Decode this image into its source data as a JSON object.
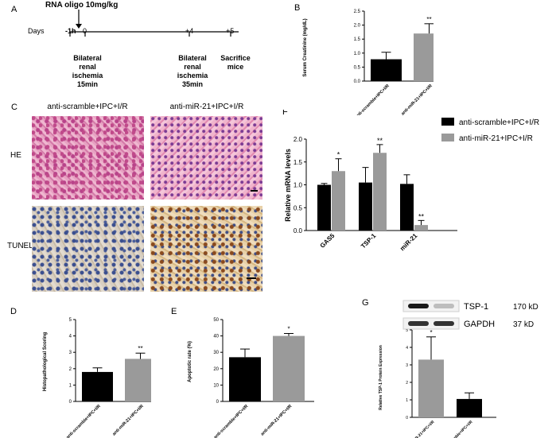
{
  "panel_a": {
    "letter": "A",
    "treatment": "RNA oligo 10mg/kg",
    "days_label": "Days",
    "ticks": [
      "-1h",
      "0",
      "+4",
      "+5"
    ],
    "events": [
      "Bilateral\nrenal\nischemia\n15min",
      "Bilateral\nrenal\nischemia\n35min",
      "Sacrifice\nmice"
    ]
  },
  "panel_c": {
    "letter": "C",
    "col1": "anti-scramble+IPC+I/R",
    "col2": "anti-miR-21+IPC+I/R",
    "row1": "HE",
    "row2": "TUNEL"
  },
  "colors": {
    "black": "#000000",
    "grey": "#9a9a9a"
  },
  "chart_data": [
    {
      "id": "B",
      "type": "bar",
      "letter": "B",
      "ylabel": "Serum Creatinine (mg/dL)",
      "ylim": [
        0,
        2.5
      ],
      "yticks": [
        "0.0",
        "0.5",
        "1.0",
        "1.5",
        "2.0",
        "2.5"
      ],
      "ytick_values": [
        0,
        0.5,
        1,
        1.5,
        2,
        2.5
      ],
      "categories": [
        "anti-scramble+IPC+I/R",
        "anti-miR-21+IPC+I/R"
      ],
      "values": [
        0.78,
        1.7
      ],
      "errors": [
        0.25,
        0.35
      ],
      "colors": [
        "#000000",
        "#9a9a9a"
      ],
      "sig": [
        "",
        "**"
      ]
    },
    {
      "id": "D",
      "type": "bar",
      "letter": "D",
      "ylabel": "Histopathological Scoring",
      "ylim": [
        0,
        5
      ],
      "yticks": [
        "0",
        "1",
        "2",
        "3",
        "4",
        "5"
      ],
      "ytick_values": [
        0,
        1,
        2,
        3,
        4,
        5
      ],
      "categories": [
        "anti-scramble+IPC+I/R",
        "anti-miR-21+IPC+I/R"
      ],
      "values": [
        1.8,
        2.6
      ],
      "errors": [
        0.25,
        0.35
      ],
      "colors": [
        "#000000",
        "#9a9a9a"
      ],
      "sig": [
        "",
        "**"
      ]
    },
    {
      "id": "E",
      "type": "bar",
      "letter": "E",
      "ylabel": "Apoptotic rate (%)",
      "ylim": [
        0,
        50
      ],
      "yticks": [
        "0",
        "10",
        "20",
        "30",
        "40",
        "50"
      ],
      "ytick_values": [
        0,
        10,
        20,
        30,
        40,
        50
      ],
      "categories": [
        "anti-scramble+IPC+I/R",
        "anti-miR-21+IPC+I/R"
      ],
      "values": [
        27,
        40
      ],
      "errors": [
        5,
        1.5
      ],
      "colors": [
        "#000000",
        "#9a9a9a"
      ],
      "sig": [
        "",
        "*"
      ]
    },
    {
      "id": "F",
      "type": "bar",
      "letter": "F",
      "ylabel": "Relative mRNA levels",
      "ylim": [
        0,
        2.0
      ],
      "yticks": [
        "0.0",
        "0.5",
        "1.0",
        "1.5",
        "2.0"
      ],
      "ytick_values": [
        0,
        0.5,
        1,
        1.5,
        2
      ],
      "categories": [
        "GAS5",
        "TSP-1",
        "miR-21"
      ],
      "series": [
        {
          "name": "anti-scramble+IPC+I/R",
          "color": "#000000",
          "values": [
            1.0,
            1.05,
            1.02
          ],
          "errors": [
            0.03,
            0.33,
            0.2
          ],
          "sig": [
            "",
            "",
            ""
          ]
        },
        {
          "name": "anti-miR-21+IPC+I/R",
          "color": "#9a9a9a",
          "values": [
            1.3,
            1.7,
            0.12
          ],
          "errors": [
            0.27,
            0.18,
            0.1
          ],
          "sig": [
            "*",
            "**",
            "**"
          ]
        }
      ],
      "legend": "right"
    },
    {
      "id": "G",
      "type": "bar",
      "letter": "G",
      "ylabel": "Relative TSP-1 Protein Expression",
      "ylim": [
        0,
        5
      ],
      "yticks": [
        "0",
        "1",
        "2",
        "3",
        "4",
        "5"
      ],
      "ytick_values": [
        0,
        1,
        2,
        3,
        4,
        5
      ],
      "categories": [
        "anti-miR-21+IPC+I/R",
        "anti-scramble+IPC+I/R"
      ],
      "values": [
        3.3,
        1.05
      ],
      "errors": [
        1.3,
        0.35
      ],
      "colors": [
        "#9a9a9a",
        "#000000"
      ],
      "sig": [
        "*",
        ""
      ],
      "blot": {
        "bands": [
          "TSP-1",
          "GAPDH"
        ],
        "sizes": [
          "170 kD",
          "37 kD"
        ]
      }
    }
  ]
}
